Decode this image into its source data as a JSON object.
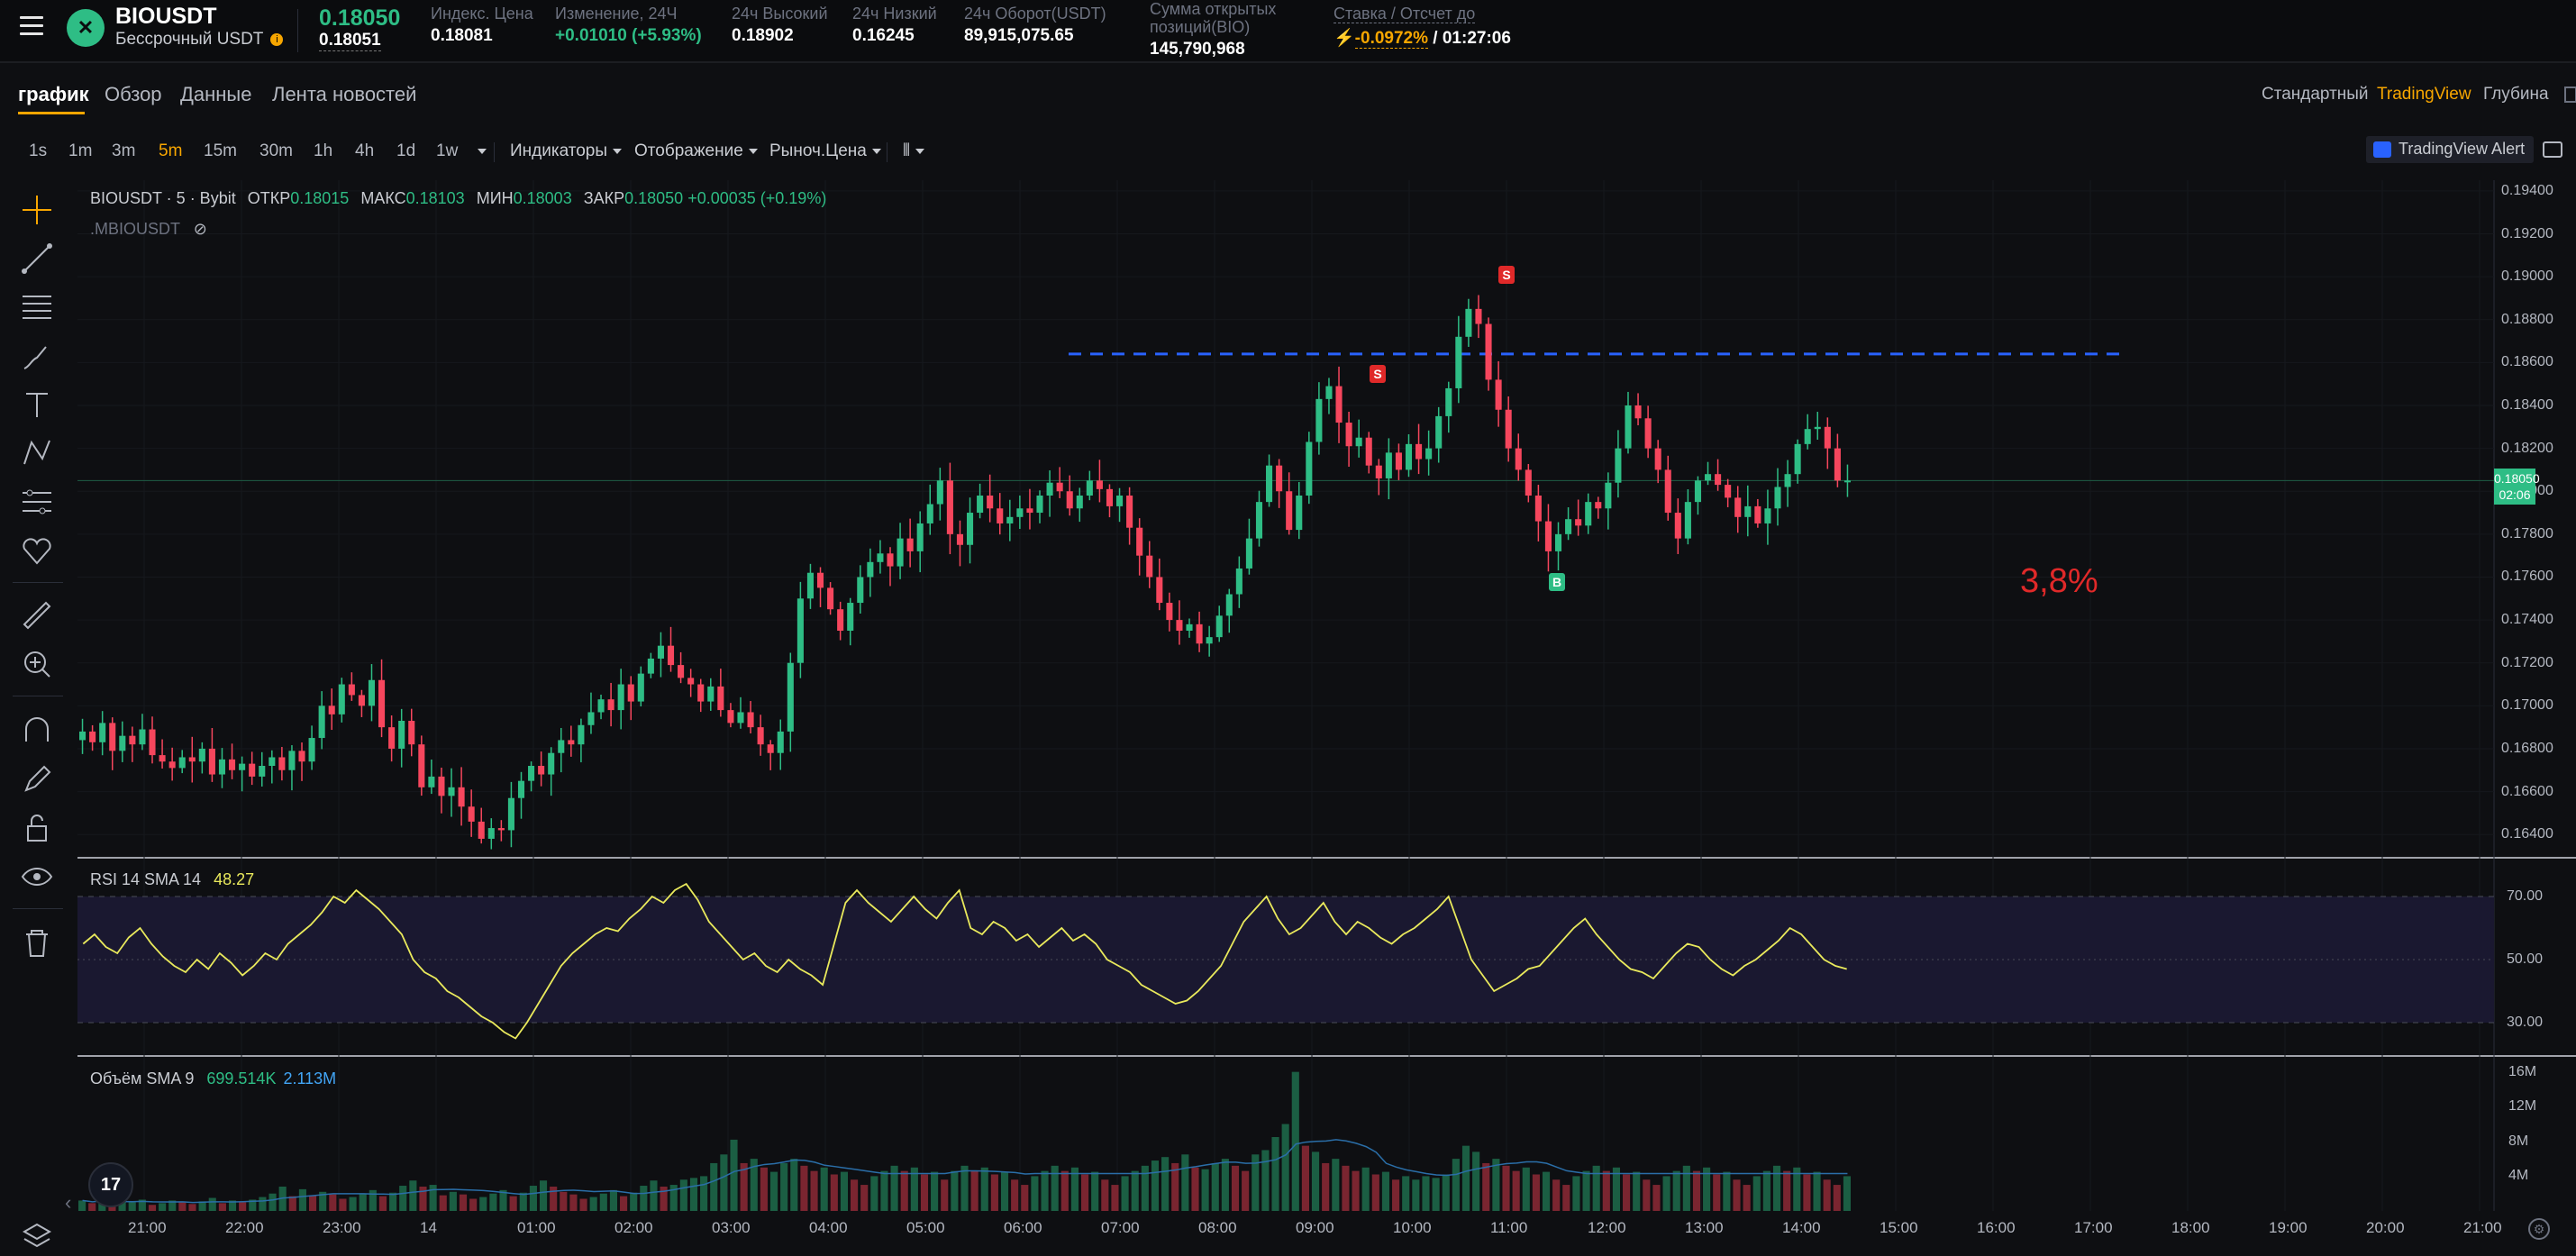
{
  "header": {
    "symbol": "BIOUSDT",
    "contract_type": "Бессрочный USDT",
    "last_price": "0.18050",
    "mark_price": "0.18051",
    "stats": [
      {
        "label": "Индекс. Цена",
        "value": "0.18081",
        "tone": "w"
      },
      {
        "label": "Изменение, 24Ч",
        "value": "+0.01010 (+5.93%)",
        "tone": "g"
      },
      {
        "label": "24ч Высокий",
        "value": "0.18902",
        "tone": "w"
      },
      {
        "label": "24ч Низкий",
        "value": "0.16245",
        "tone": "w"
      },
      {
        "label": "24ч Оборот(USDT)",
        "value": "89,915,075.65",
        "tone": "w"
      },
      {
        "label": "Сумма открытых позиций(BIO)",
        "value": "145,790,968",
        "tone": "w"
      }
    ],
    "funding": {
      "label": "Ставка / Отсчет до",
      "rate": "-0.0972%",
      "countdown": "/ 01:27:06"
    }
  },
  "tabs": [
    "график",
    "Обзор",
    "Данные",
    "Лента новостей"
  ],
  "view_switch": [
    "Стандартный",
    "TradingView",
    "Глубина"
  ],
  "timeframes": [
    "1s",
    "1m",
    "3m",
    "5m",
    "15m",
    "30m",
    "1h",
    "4h",
    "1d",
    "1w"
  ],
  "active_timeframe": "5m",
  "dropdowns": [
    "Индикаторы",
    "Отображение",
    "Рыноч.Цена"
  ],
  "tv_alert": "TradingView Alert",
  "legend": {
    "title": "BIOUSDT · 5 · Bybit",
    "open_label": "ОТКР",
    "open": "0.18015",
    "high_label": "МАКС",
    "high": "0.18103",
    "low_label": "МИН",
    "low": "0.18003",
    "close_label": "ЗАКР",
    "close": "0.18050",
    "change": "+0.00035 (+0.19%)",
    "overlay": ".MBIOUSDT"
  },
  "rsi": {
    "label": "RSI 14 SMA 14",
    "value": "48.27",
    "levels": [
      "70.00",
      "50.00",
      "30.00"
    ]
  },
  "volume": {
    "label": "Объём SMA 9",
    "value": "699.514K",
    "sma": "2.113M",
    "axis": [
      "16M",
      "12M",
      "8M",
      "4M"
    ]
  },
  "price_axis": [
    "0.19400",
    "0.19200",
    "0.19000",
    "0.18800",
    "0.18600",
    "0.18400",
    "0.18200",
    "0.18000",
    "0.17800",
    "0.17600",
    "0.17400",
    "0.17200",
    "0.17000",
    "0.16800",
    "0.16600",
    "0.16400"
  ],
  "price_tag": {
    "price": "0.18050",
    "countdown": "02:06"
  },
  "time_axis": [
    "21:00",
    "22:00",
    "23:00",
    "14",
    "01:00",
    "02:00",
    "03:00",
    "04:00",
    "05:00",
    "06:00",
    "07:00",
    "08:00",
    "09:00",
    "10:00",
    "11:00",
    "12:00",
    "13:00",
    "14:00",
    "15:00",
    "16:00",
    "17:00",
    "18:00",
    "19:00",
    "20:00",
    "21:00"
  ],
  "annotation": "3,8%",
  "markers": [
    {
      "type": "S"
    },
    {
      "type": "S"
    },
    {
      "type": "B"
    }
  ],
  "colors": {
    "up": "#2ebd85",
    "down": "#f6465d",
    "accent": "#f7a600",
    "dashed_line": "#2962ff",
    "rsi": "#e9e95c"
  },
  "chart_data": {
    "type": "candlestick",
    "interval": "5m",
    "ylim": [
      0.163,
      0.1945
    ],
    "hline": 0.1864,
    "x_range": [
      "21:00",
      "21:00"
    ],
    "price_path": [
      0.1688,
      0.1683,
      0.1692,
      0.1679,
      0.1686,
      0.1682,
      0.1689,
      0.1677,
      0.1674,
      0.1671,
      0.1676,
      0.1674,
      0.168,
      0.1668,
      0.1675,
      0.167,
      0.1673,
      0.1667,
      0.1672,
      0.1676,
      0.167,
      0.1679,
      0.1674,
      0.1685,
      0.17,
      0.1696,
      0.171,
      0.1705,
      0.17,
      0.1712,
      0.169,
      0.168,
      0.1693,
      0.1682,
      0.1662,
      0.1667,
      0.1658,
      0.1662,
      0.1653,
      0.1646,
      0.1638,
      0.1643,
      0.1642,
      0.1657,
      0.1665,
      0.1672,
      0.1668,
      0.1678,
      0.1684,
      0.1682,
      0.1691,
      0.1697,
      0.1703,
      0.1698,
      0.171,
      0.1702,
      0.1715,
      0.1722,
      0.1728,
      0.1719,
      0.1713,
      0.171,
      0.1702,
      0.1709,
      0.1698,
      0.1692,
      0.1697,
      0.169,
      0.1682,
      0.1678,
      0.1688,
      0.172,
      0.175,
      0.1762,
      0.1755,
      0.1745,
      0.1735,
      0.1748,
      0.176,
      0.1767,
      0.1771,
      0.1765,
      0.1778,
      0.1772,
      0.1785,
      0.1794,
      0.1805,
      0.178,
      0.1775,
      0.179,
      0.1798,
      0.1792,
      0.1785,
      0.1788,
      0.1792,
      0.179,
      0.1798,
      0.1804,
      0.18,
      0.1792,
      0.1798,
      0.1805,
      0.1801,
      0.1793,
      0.1798,
      0.1783,
      0.177,
      0.176,
      0.1748,
      0.174,
      0.1735,
      0.1738,
      0.1729,
      0.1732,
      0.1742,
      0.1752,
      0.1764,
      0.1778,
      0.1795,
      0.1812,
      0.18,
      0.1782,
      0.1798,
      0.1823,
      0.1843,
      0.1849,
      0.1832,
      0.1821,
      0.1825,
      0.1812,
      0.1806,
      0.1818,
      0.181,
      0.1822,
      0.1815,
      0.182,
      0.1835,
      0.1848,
      0.1872,
      0.1885,
      0.1878,
      0.1852,
      0.1838,
      0.182,
      0.181,
      0.1798,
      0.1786,
      0.1772,
      0.178,
      0.1787,
      0.1784,
      0.1795,
      0.1792,
      0.1804,
      0.182,
      0.184,
      0.1834,
      0.182,
      0.181,
      0.179,
      0.1778,
      0.1795,
      0.1805,
      0.1808,
      0.1803,
      0.1797,
      0.1788,
      0.1793,
      0.1785,
      0.1792,
      0.1802,
      0.1808,
      0.1822,
      0.1829,
      0.183,
      0.182,
      0.1805,
      0.1805
    ],
    "rsi_series": [
      55,
      58,
      54,
      52,
      57,
      60,
      55,
      51,
      48,
      46,
      50,
      47,
      52,
      49,
      45,
      48,
      52,
      50,
      55,
      58,
      61,
      65,
      70,
      68,
      72,
      69,
      66,
      62,
      58,
      50,
      46,
      44,
      40,
      38,
      35,
      32,
      30,
      27,
      25,
      30,
      36,
      42,
      48,
      52,
      55,
      58,
      60,
      59,
      63,
      66,
      70,
      68,
      72,
      74,
      69,
      62,
      58,
      54,
      50,
      52,
      48,
      46,
      50,
      47,
      45,
      42,
      55,
      68,
      72,
      68,
      65,
      62,
      66,
      70,
      66,
      63,
      68,
      72,
      60,
      58,
      62,
      60,
      56,
      58,
      54,
      57,
      60,
      56,
      58,
      55,
      50,
      48,
      46,
      42,
      40,
      38,
      36,
      37,
      40,
      44,
      48,
      55,
      62,
      66,
      70,
      63,
      58,
      60,
      64,
      68,
      62,
      58,
      62,
      60,
      57,
      55,
      58,
      60,
      63,
      66,
      70,
      60,
      50,
      45,
      40,
      42,
      44,
      47,
      48,
      52,
      56,
      60,
      63,
      58,
      54,
      50,
      47,
      46,
      44,
      48,
      52,
      55,
      54,
      50,
      47,
      45,
      48,
      50,
      53,
      56,
      60,
      58,
      54,
      50,
      48,
      47
    ],
    "volume_series": [
      1.2,
      0.9,
      1.4,
      0.8,
      1.1,
      1.0,
      1.3,
      0.7,
      0.9,
      1.2,
      1.0,
      0.8,
      1.1,
      1.5,
      0.9,
      1.2,
      1.0,
      1.3,
      1.6,
      2.0,
      2.8,
      1.7,
      2.5,
      1.8,
      2.2,
      1.9,
      1.4,
      1.6,
      2.0,
      2.4,
      1.7,
      2.1,
      2.9,
      3.5,
      2.8,
      3.0,
      1.8,
      2.2,
      1.9,
      1.4,
      1.6,
      2.0,
      2.4,
      1.7,
      2.1,
      2.9,
      3.5,
      2.8,
      2.2,
      1.9,
      1.4,
      1.6,
      2.0,
      2.4,
      1.7,
      2.1,
      2.9,
      3.5,
      2.8,
      3.0,
      3.6,
      3.8,
      4.0,
      5.5,
      6.5,
      8.2,
      5.5,
      6.0,
      5.0,
      4.5,
      5.5,
      6.0,
      5.2,
      4.6,
      5.0,
      4.2,
      4.5,
      3.6,
      3.0,
      4.0,
      4.6,
      5.2,
      4.6,
      5.0,
      4.2,
      4.5,
      3.6,
      4.6,
      5.2,
      4.6,
      5.0,
      4.2,
      4.5,
      3.6,
      3.0,
      4.0,
      4.6,
      5.2,
      4.6,
      5.0,
      4.2,
      4.5,
      3.6,
      3.0,
      4.0,
      4.6,
      5.2,
      5.8,
      6.2,
      5.5,
      6.5,
      5.0,
      4.8,
      5.5,
      6.0,
      5.2,
      4.6,
      6.5,
      7.0,
      8.5,
      10.0,
      16.0,
      7.5,
      6.8,
      5.5,
      6.0,
      5.2,
      4.6,
      5.0,
      4.2,
      4.5,
      3.6,
      4.0,
      3.6,
      4.0,
      3.8,
      4.2,
      6.0,
      7.5,
      6.8,
      5.5,
      6.0,
      5.2,
      4.6,
      5.0,
      4.2,
      4.5,
      3.6,
      3.0,
      4.0,
      4.6,
      5.2,
      4.6,
      5.0,
      4.2,
      4.5,
      3.6,
      3.0,
      4.0,
      4.6,
      5.2,
      4.6,
      5.0,
      4.2,
      4.5,
      3.6,
      3.0,
      4.0,
      4.6,
      5.2,
      4.6,
      5.0,
      4.2,
      4.5,
      3.6,
      3.0,
      4.0
    ]
  }
}
